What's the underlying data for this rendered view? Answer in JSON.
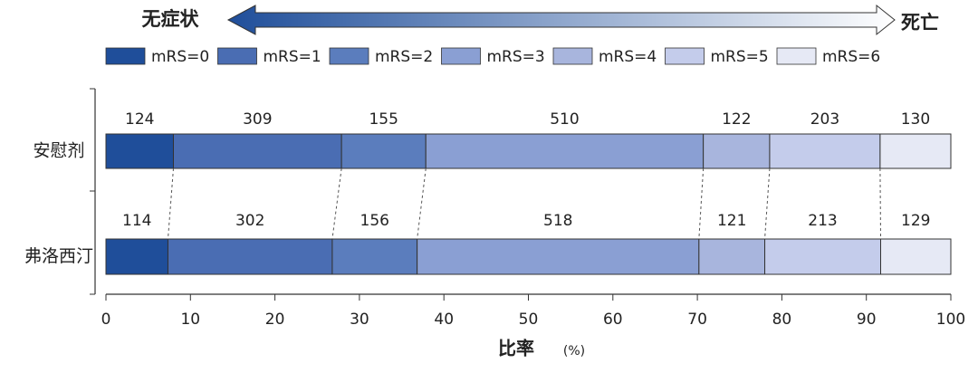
{
  "chart_data": {
    "type": "bar",
    "orientation": "horizontal",
    "stacked": "percent",
    "annotations": [
      "无症状",
      "死亡"
    ],
    "categories": [
      "安慰剂",
      "弗洛西汀"
    ],
    "series": [
      {
        "name": "mRS=0",
        "color": "#1f4e9a",
        "values": [
          124,
          114
        ]
      },
      {
        "name": "mRS=1",
        "color": "#4a6db3",
        "values": [
          309,
          302
        ]
      },
      {
        "name": "mRS=2",
        "color": "#5b7dbd",
        "values": [
          155,
          156
        ]
      },
      {
        "name": "mRS=3",
        "color": "#8a9fd3",
        "values": [
          510,
          518
        ]
      },
      {
        "name": "mRS=4",
        "color": "#a8b5dd",
        "values": [
          122,
          121
        ]
      },
      {
        "name": "mRS=5",
        "color": "#c4cceb",
        "values": [
          203,
          213
        ]
      },
      {
        "name": "mRS=6",
        "color": "#e6e9f5",
        "values": [
          130,
          129
        ]
      }
    ],
    "xlabel": "比率",
    "xunit": "(%)",
    "xlim": [
      0,
      100
    ],
    "xticks": [
      0,
      10,
      20,
      30,
      40,
      50,
      60,
      70,
      80,
      90,
      100
    ]
  }
}
